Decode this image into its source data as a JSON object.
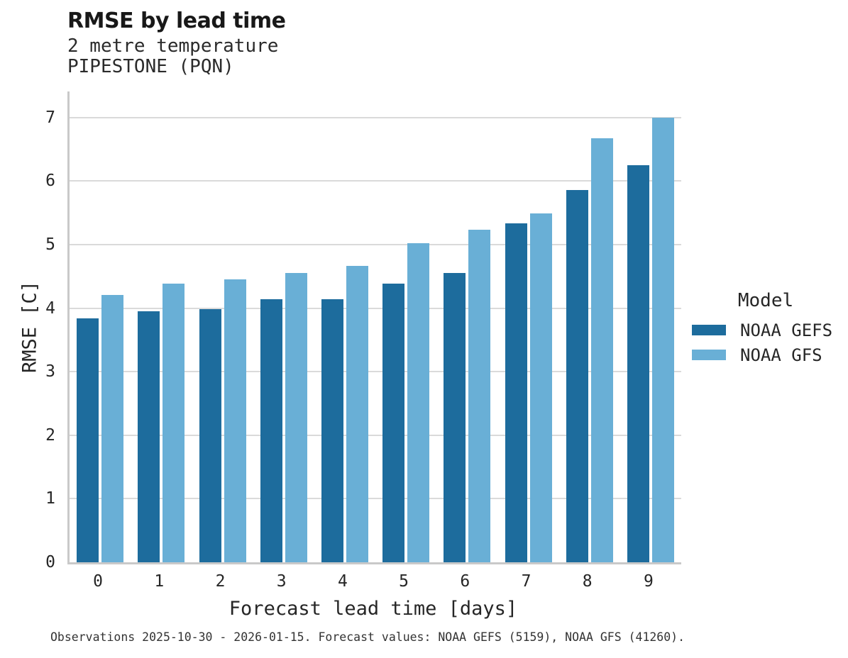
{
  "header": {
    "title": "RMSE by lead time",
    "subtitle_line1": "2 metre temperature",
    "subtitle_line2": "PIPESTONE (PQN)"
  },
  "chart_data": {
    "type": "bar",
    "title": "RMSE by lead time",
    "subtitle": [
      "2 metre temperature",
      "PIPESTONE (PQN)"
    ],
    "xlabel": "Forecast lead time [days]",
    "ylabel": "RMSE [C]",
    "categories": [
      "0",
      "1",
      "2",
      "3",
      "4",
      "5",
      "6",
      "7",
      "8",
      "9"
    ],
    "series": [
      {
        "name": "NOAA GEFS",
        "color": "#1d6c9d",
        "values": [
          3.84,
          3.95,
          3.98,
          4.14,
          4.14,
          4.39,
          4.55,
          5.33,
          5.86,
          6.25
        ]
      },
      {
        "name": "NOAA GFS",
        "color": "#69afd6",
        "values": [
          4.21,
          4.39,
          4.45,
          4.55,
          4.67,
          5.02,
          5.23,
          5.49,
          6.67,
          7.0
        ]
      }
    ],
    "ylim": [
      0,
      7.41
    ],
    "yticks": [
      0,
      1,
      2,
      3,
      4,
      5,
      6,
      7
    ],
    "grid": "horizontal",
    "legend_position": "right"
  },
  "legend": {
    "title": "Model",
    "items": [
      {
        "label": "NOAA GEFS",
        "color": "#1d6c9d"
      },
      {
        "label": "NOAA GFS",
        "color": "#69afd6"
      }
    ]
  },
  "footer": {
    "caption": "Observations 2025-10-30 - 2026-01-15. Forecast values: NOAA GEFS (5159), NOAA GFS (41260)."
  },
  "colors": {
    "gefs_bar": "#1d6c9d",
    "gfs_bar": "#69afd6",
    "gridline": "#dadada",
    "axis_line": "#c9c9c9",
    "text": "#262626"
  }
}
